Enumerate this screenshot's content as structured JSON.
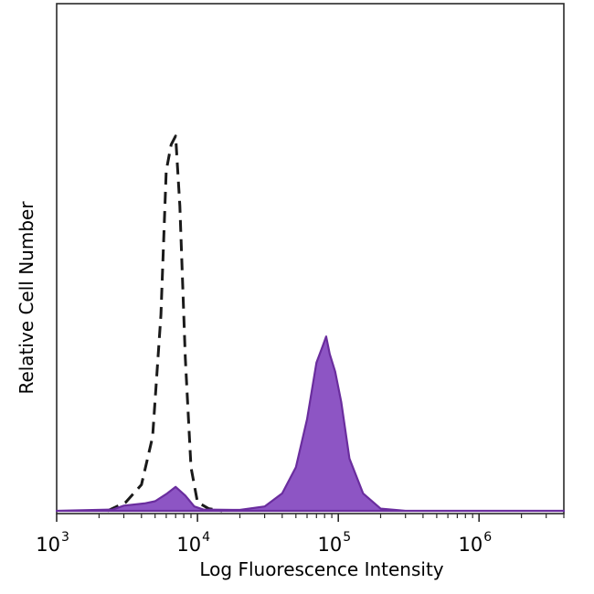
{
  "chart_data": {
    "type": "area",
    "title": "",
    "xlabel": "Log Fluorescence Intensity",
    "ylabel": "Relative Cell Number",
    "xscale": "log",
    "xlim": [
      1000,
      4000000
    ],
    "ylim": [
      0,
      1.0
    ],
    "grid": false,
    "x_major_ticks": [
      {
        "value": 1000,
        "base": "10",
        "exp": "3"
      },
      {
        "value": 10000,
        "base": "10",
        "exp": "4"
      },
      {
        "value": 100000,
        "base": "10",
        "exp": "5"
      },
      {
        "value": 1000000,
        "base": "10",
        "exp": "6"
      }
    ],
    "series": [
      {
        "style": "dashed-outline",
        "color": "#1a1a1a",
        "points": [
          [
            2300,
            0.0
          ],
          [
            3100,
            0.02
          ],
          [
            4000,
            0.06
          ],
          [
            4800,
            0.17
          ],
          [
            5500,
            0.45
          ],
          [
            6000,
            0.78
          ],
          [
            6500,
            0.84
          ],
          [
            7000,
            0.86
          ],
          [
            7500,
            0.7
          ],
          [
            8200,
            0.35
          ],
          [
            9000,
            0.1
          ],
          [
            10000,
            0.02
          ],
          [
            12000,
            0.005
          ],
          [
            15000,
            0.0
          ]
        ]
      },
      {
        "style": "filled",
        "color": "#6a2d9e",
        "fill": "#8d55c4",
        "points": [
          [
            1000,
            0.0
          ],
          [
            2500,
            0.003
          ],
          [
            3000,
            0.012
          ],
          [
            4200,
            0.017
          ],
          [
            5000,
            0.022
          ],
          [
            6100,
            0.04
          ],
          [
            7000,
            0.055
          ],
          [
            8200,
            0.035
          ],
          [
            9500,
            0.01
          ],
          [
            11000,
            0.003
          ],
          [
            20000,
            0.002
          ],
          [
            30000,
            0.01
          ],
          [
            40000,
            0.04
          ],
          [
            50000,
            0.1
          ],
          [
            60000,
            0.21
          ],
          [
            70000,
            0.34
          ],
          [
            78000,
            0.38
          ],
          [
            82000,
            0.4
          ],
          [
            87000,
            0.36
          ],
          [
            95000,
            0.32
          ],
          [
            105000,
            0.25
          ],
          [
            120000,
            0.12
          ],
          [
            150000,
            0.04
          ],
          [
            200000,
            0.005
          ],
          [
            300000,
            0.0
          ],
          [
            4000000,
            0.0
          ]
        ]
      }
    ]
  }
}
